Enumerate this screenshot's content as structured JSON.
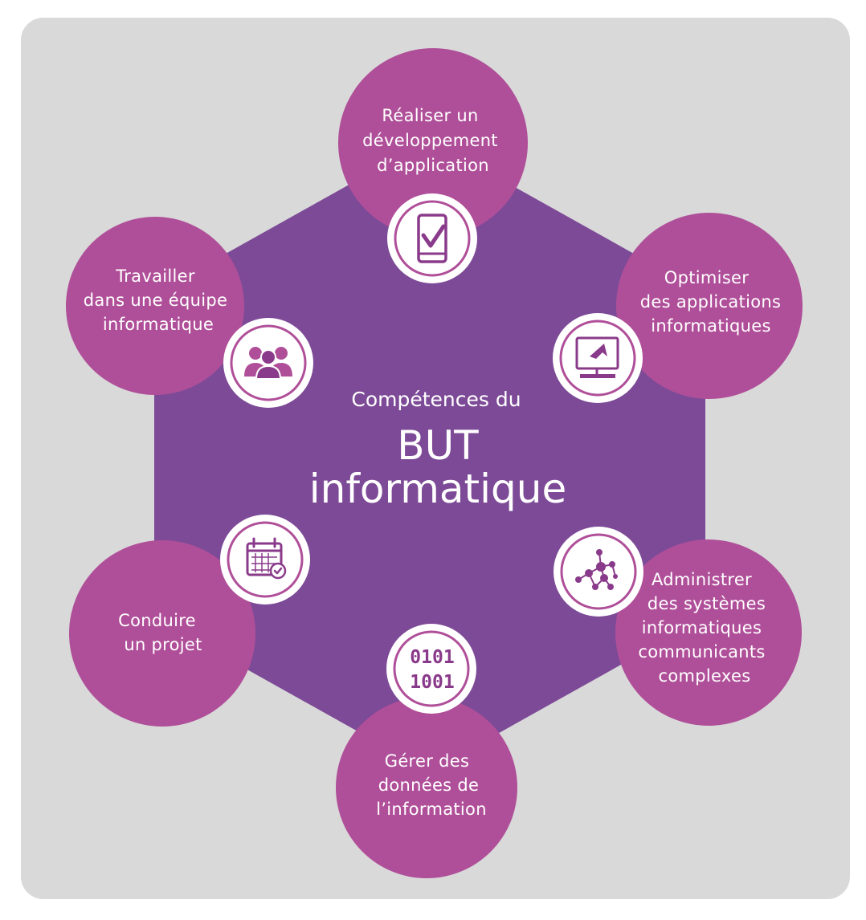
{
  "center": {
    "line1": "Compétences du",
    "line2": "BUT",
    "line3": "informatique"
  },
  "competences": [
    {
      "id": "dev",
      "lines": [
        "Réaliser un",
        "développement",
        "d’application"
      ],
      "icon": "mobile-check-icon"
    },
    {
      "id": "optim",
      "lines": [
        "Optimiser",
        "des applications",
        "informatiques"
      ],
      "icon": "monitor-cursor-icon"
    },
    {
      "id": "admin",
      "lines": [
        "Administrer",
        "des systèmes",
        "informatiques",
        "communicants",
        "complexes"
      ],
      "icon": "network-nodes-icon"
    },
    {
      "id": "data",
      "lines": [
        "Gérer des",
        "données de",
        "l’information"
      ],
      "icon": "binary-data-icon"
    },
    {
      "id": "projet",
      "lines": [
        "Conduire",
        "un projet"
      ],
      "icon": "calendar-check-icon"
    },
    {
      "id": "equipe",
      "lines": [
        "Travailler",
        "dans une équipe",
        "informatique"
      ],
      "icon": "team-users-icon"
    }
  ],
  "binary": [
    "0101",
    "1001"
  ],
  "colors": {
    "background": "#d9d9d9",
    "hexagon": "#7d4a97",
    "satellite": "#b04f99",
    "icon_ring": "#ffffff",
    "icon_stroke": "#8a3a8a",
    "text": "#ffffff"
  }
}
